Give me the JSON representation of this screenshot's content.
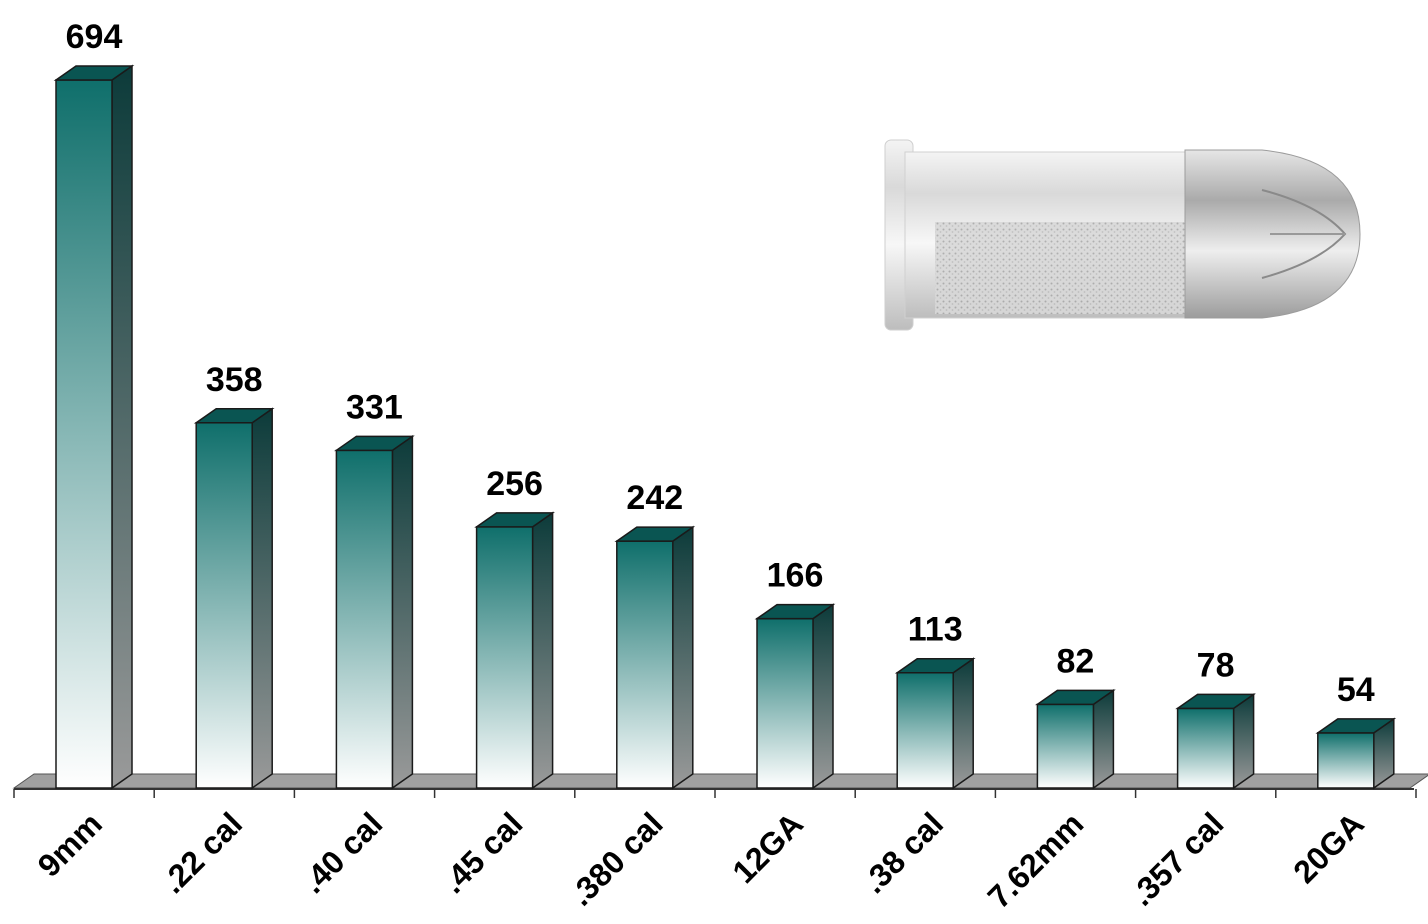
{
  "chart_data": {
    "type": "bar",
    "categories": [
      "9mm",
      ".22 cal",
      ".40 cal",
      ".45 cal",
      ".380 cal",
      "12GA",
      ".38 cal",
      "7.62mm",
      ".357 cal",
      "20GA"
    ],
    "values": [
      694,
      358,
      331,
      256,
      242,
      166,
      113,
      82,
      78,
      54
    ],
    "title": "",
    "xlabel": "",
    "ylabel": "",
    "ylim": [
      0,
      700
    ],
    "grid": false,
    "legend": "none",
    "style": "3d-gradient-bars",
    "colors": {
      "bar_top": "#0f6f6b",
      "bar_top_face": "#0a5552",
      "bar_side": "#0c3b3a",
      "bar_bottom": "#ffffff",
      "floor": "#a0a0a0",
      "axis": "#333333"
    },
    "illustration": "bullet-cartridge-cutaway"
  }
}
